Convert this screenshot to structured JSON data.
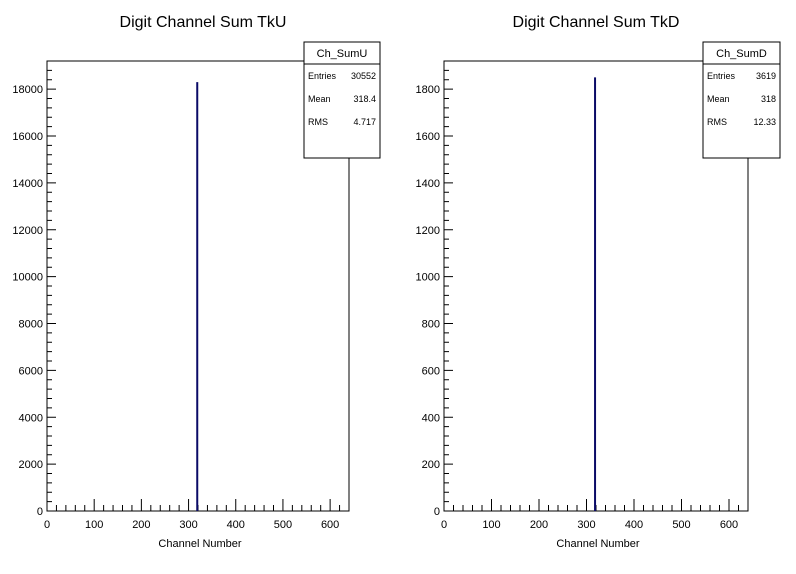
{
  "chart_data": [
    {
      "type": "bar",
      "title": "Digit Channel Sum TkU",
      "xlabel": "Channel Number",
      "ylabel": "",
      "xlim": [
        0,
        640
      ],
      "ylim": [
        0,
        19200
      ],
      "xticks": [
        "0",
        "100",
        "200",
        "300",
        "400",
        "500",
        "600"
      ],
      "yticks": [
        "0",
        "2000",
        "4000",
        "6000",
        "8000",
        "10000",
        "12000",
        "14000",
        "16000",
        "18000"
      ],
      "bins": [
        {
          "x": 318.4,
          "value": 18300
        }
      ],
      "line_color": "#0a0a66",
      "stats": {
        "name": "Ch_SumU",
        "rows": [
          {
            "label": "Entries",
            "value": "30552"
          },
          {
            "label": "Mean",
            "value": "318.4"
          },
          {
            "label": "RMS",
            "value": "4.717"
          }
        ]
      }
    },
    {
      "type": "bar",
      "title": "Digit Channel Sum TkD",
      "xlabel": "Channel Number",
      "ylabel": "",
      "xlim": [
        0,
        640
      ],
      "ylim": [
        0,
        1920
      ],
      "xticks": [
        "0",
        "100",
        "200",
        "300",
        "400",
        "500",
        "600"
      ],
      "yticks": [
        "0",
        "200",
        "400",
        "600",
        "800",
        "1000",
        "1200",
        "1400",
        "1600",
        "1800"
      ],
      "bins": [
        {
          "x": 318,
          "value": 1850
        }
      ],
      "line_color": "#0a0a66",
      "stats": {
        "name": "Ch_SumD",
        "rows": [
          {
            "label": "Entries",
            "value": "3619"
          },
          {
            "label": "Mean",
            "value": "318"
          },
          {
            "label": "RMS",
            "value": "12.33"
          }
        ]
      }
    }
  ]
}
